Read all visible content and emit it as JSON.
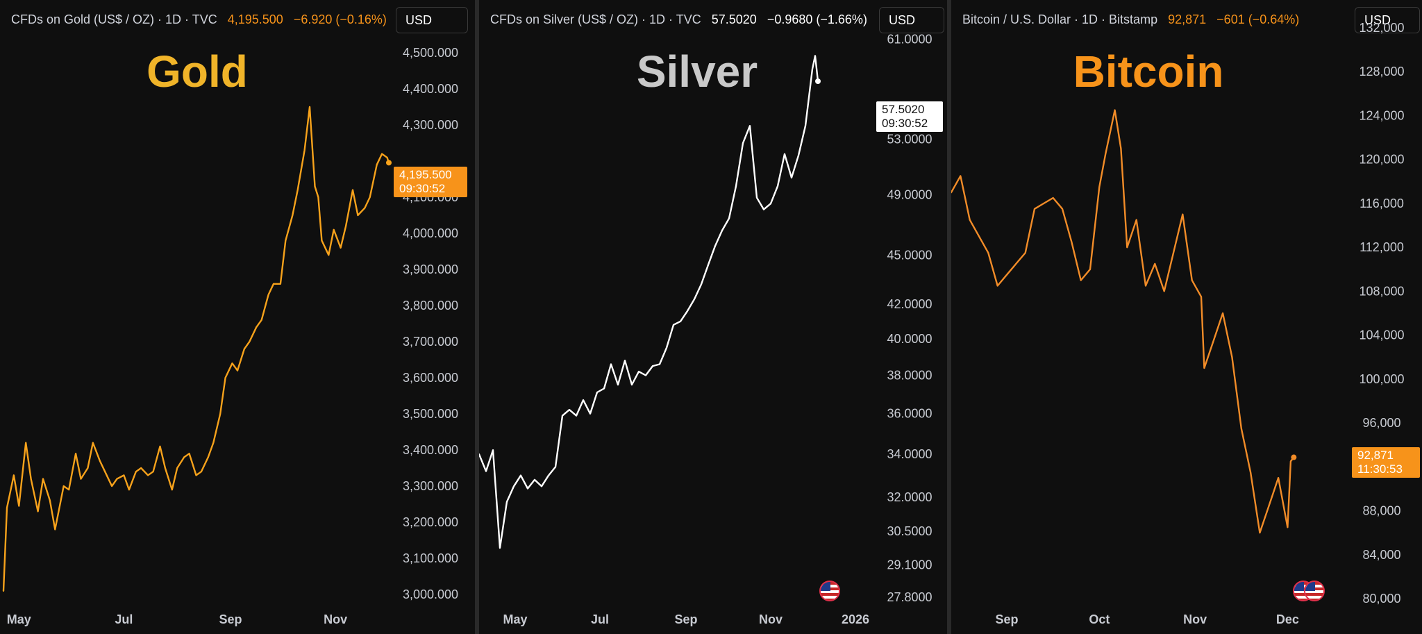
{
  "panels": [
    {
      "key": "gold",
      "header": {
        "symbol": "CFDs on Gold (US$ / OZ) · 1D · TVC",
        "price": "4,195.500",
        "change": "−6.920 (−0.16%)"
      },
      "currency_button": "USD",
      "title": "Gold",
      "price_tag": {
        "price": "4,195.500",
        "time": "09:30:52"
      },
      "colors": {
        "line": "#f7a21b",
        "title": "#f0b429",
        "header_values": "#f7931a",
        "tag_bg": "#f7931a",
        "tag_text": "#ffffff"
      }
    },
    {
      "key": "silver",
      "header": {
        "symbol": "CFDs on Silver (US$ / OZ) · 1D · TVC",
        "price": "57.5020",
        "change": "−0.9680 (−1.66%)"
      },
      "currency_button": "USD",
      "title": "Silver",
      "price_tag": {
        "price": "57.5020",
        "time": "09:30:52"
      },
      "colors": {
        "line": "#ffffff",
        "title": "#c9c9c9",
        "header_values": "#ffffff",
        "tag_bg": "#ffffff",
        "tag_text": "#111111"
      }
    },
    {
      "key": "btc",
      "header": {
        "symbol": "Bitcoin / U.S. Dollar · 1D · Bitstamp",
        "price": "92,871",
        "change": "−601 (−0.64%)"
      },
      "currency_button": "USD",
      "title": "Bitcoin",
      "price_tag": {
        "price": "92,871",
        "time": "11:30:53"
      },
      "colors": {
        "line": "#f28c28",
        "title": "#f7931a",
        "header_values": "#f7931a",
        "tag_bg": "#f7931a",
        "tag_text": "#ffffff"
      }
    }
  ],
  "chart_data": [
    {
      "type": "line",
      "series": [
        {
          "name": "CFDs on Gold (US$ / OZ)",
          "x": [
            "Apr 22",
            "Apr 24",
            "Apr 28",
            "May 1",
            "May 5",
            "May 8",
            "May 12",
            "May 15",
            "May 19",
            "May 22",
            "May 27",
            "May 30",
            "Jun 3",
            "Jun 6",
            "Jun 10",
            "Jun 13",
            "Jun 17",
            "Jun 20",
            "Jun 24",
            "Jun 27",
            "Jul 1",
            "Jul 4",
            "Jul 8",
            "Jul 11",
            "Jul 15",
            "Jul 18",
            "Jul 22",
            "Jul 25",
            "Jul 29",
            "Aug 1",
            "Aug 5",
            "Aug 8",
            "Aug 12",
            "Aug 15",
            "Aug 19",
            "Aug 22",
            "Aug 26",
            "Aug 29",
            "Sep 2",
            "Sep 5",
            "Sep 9",
            "Sep 12",
            "Sep 16",
            "Sep 19",
            "Sep 23",
            "Sep 26",
            "Sep 30",
            "Oct 3",
            "Oct 7",
            "Oct 10",
            "Oct 14",
            "Oct 17",
            "Oct 20",
            "Oct 22",
            "Oct 24",
            "Oct 28",
            "Oct 31",
            "Nov 4",
            "Nov 7",
            "Nov 11",
            "Nov 14",
            "Nov 18",
            "Nov 21",
            "Nov 25",
            "Nov 28",
            "Dec 1",
            "Dec 2"
          ],
          "values": [
            3010,
            3240,
            3330,
            3245,
            3420,
            3320,
            3230,
            3320,
            3260,
            3180,
            3300,
            3290,
            3390,
            3320,
            3350,
            3420,
            3370,
            3340,
            3300,
            3320,
            3330,
            3290,
            3340,
            3350,
            3330,
            3340,
            3410,
            3350,
            3290,
            3350,
            3380,
            3390,
            3330,
            3340,
            3380,
            3420,
            3500,
            3600,
            3640,
            3620,
            3680,
            3700,
            3740,
            3760,
            3830,
            3860,
            3860,
            3980,
            4050,
            4120,
            4230,
            4350,
            4130,
            4100,
            3980,
            3940,
            4010,
            3960,
            4020,
            4120,
            4050,
            4070,
            4100,
            4190,
            4220,
            4210,
            4195.5
          ]
        }
      ],
      "x_ticks": [
        "May",
        "Jul",
        "Sep",
        "Nov"
      ],
      "y_ticks": [
        "4,500.000",
        "4,400.000",
        "4,300.000",
        "4,100.000",
        "4,000.000",
        "3,900.000",
        "3,800.000",
        "3,700.000",
        "3,600.000",
        "3,500.000",
        "3,400.000",
        "3,300.000",
        "3,200.000",
        "3,100.000",
        "3,000.000"
      ],
      "y_range": [
        3000,
        4550
      ],
      "x_range": [
        "Apr 22",
        "Dec 2"
      ],
      "grid": false,
      "scale": "linear"
    },
    {
      "type": "line",
      "series": [
        {
          "name": "CFDs on Silver (US$ / OZ)",
          "x": [
            "Apr 5",
            "Apr 10",
            "Apr 15",
            "Apr 20",
            "Apr 25",
            "Apr 30",
            "May 5",
            "May 10",
            "May 15",
            "May 20",
            "May 25",
            "May 30",
            "Jun 4",
            "Jun 9",
            "Jun 14",
            "Jun 19",
            "Jun 24",
            "Jun 29",
            "Jul 4",
            "Jul 9",
            "Jul 14",
            "Jul 19",
            "Jul 24",
            "Jul 29",
            "Aug 3",
            "Aug 8",
            "Aug 13",
            "Aug 18",
            "Aug 23",
            "Aug 28",
            "Sep 2",
            "Sep 7",
            "Sep 12",
            "Sep 17",
            "Sep 22",
            "Sep 27",
            "Oct 2",
            "Oct 7",
            "Oct 12",
            "Oct 17",
            "Oct 22",
            "Oct 27",
            "Nov 1",
            "Nov 6",
            "Nov 11",
            "Nov 16",
            "Nov 21",
            "Nov 26",
            "Dec 1",
            "Dec 3",
            "Dec 5"
          ],
          "values": [
            34.0,
            33.2,
            34.2,
            29.8,
            31.8,
            32.5,
            33.0,
            32.4,
            32.8,
            32.5,
            33.0,
            33.4,
            35.9,
            36.2,
            35.9,
            36.7,
            36.0,
            37.1,
            37.3,
            38.6,
            37.5,
            38.8,
            37.5,
            38.2,
            38.0,
            38.5,
            38.6,
            39.5,
            40.8,
            41.0,
            41.6,
            42.3,
            43.2,
            44.4,
            45.6,
            46.6,
            47.4,
            49.6,
            52.7,
            54.0,
            48.8,
            48.0,
            48.4,
            49.6,
            51.9,
            50.2,
            51.8,
            54.0,
            58.5,
            59.6,
            57.502
          ]
        }
      ],
      "x_ticks": [
        "May",
        "Jul",
        "Sep",
        "Nov",
        "2026"
      ],
      "y_ticks": [
        "61.0000",
        "53.0000",
        "49.0000",
        "45.0000",
        "42.0000",
        "40.0000",
        "38.0000",
        "36.0000",
        "34.0000",
        "32.0000",
        "30.5000",
        "29.1000",
        "27.8000"
      ],
      "y_range": [
        27.8,
        62.0
      ],
      "x_range": [
        "Apr 5",
        "Jan 10"
      ],
      "grid": false,
      "scale": "log"
    },
    {
      "type": "line",
      "series": [
        {
          "name": "Bitcoin / U.S. Dollar",
          "x": [
            "Aug 14",
            "Aug 17",
            "Aug 20",
            "Aug 23",
            "Aug 26",
            "Aug 29",
            "Sep 1",
            "Sep 4",
            "Sep 7",
            "Sep 10",
            "Sep 13",
            "Sep 16",
            "Sep 19",
            "Sep 22",
            "Sep 25",
            "Sep 28",
            "Oct 1",
            "Oct 3",
            "Oct 6",
            "Oct 8",
            "Oct 10",
            "Oct 13",
            "Oct 16",
            "Oct 19",
            "Oct 22",
            "Oct 25",
            "Oct 28",
            "Oct 31",
            "Nov 3",
            "Nov 4",
            "Nov 7",
            "Nov 10",
            "Nov 13",
            "Nov 16",
            "Nov 19",
            "Nov 22",
            "Nov 25",
            "Nov 28",
            "Dec 1",
            "Dec 2",
            "Dec 3"
          ],
          "values": [
            117000,
            118500,
            114500,
            113000,
            111500,
            108500,
            109500,
            110500,
            111500,
            115500,
            116000,
            116500,
            115500,
            112500,
            109000,
            110000,
            117500,
            120500,
            124500,
            121000,
            112000,
            114500,
            108500,
            110500,
            108000,
            111500,
            115000,
            109000,
            107500,
            101000,
            103500,
            106000,
            102000,
            95500,
            91500,
            86000,
            88500,
            91000,
            86500,
            92500,
            92871
          ]
        }
      ],
      "x_ticks": [
        "Sep",
        "Oct",
        "Nov",
        "Dec"
      ],
      "y_ticks": [
        "132,000",
        "128,000",
        "124,000",
        "120,000",
        "116,000",
        "112,000",
        "108,000",
        "104,000",
        "100,000",
        "96,000",
        "88,000",
        "84,000",
        "80,000"
      ],
      "y_range": [
        80000,
        132000
      ],
      "x_range": [
        "Aug 14",
        "Dec 18"
      ],
      "grid": false,
      "scale": "linear"
    }
  ]
}
